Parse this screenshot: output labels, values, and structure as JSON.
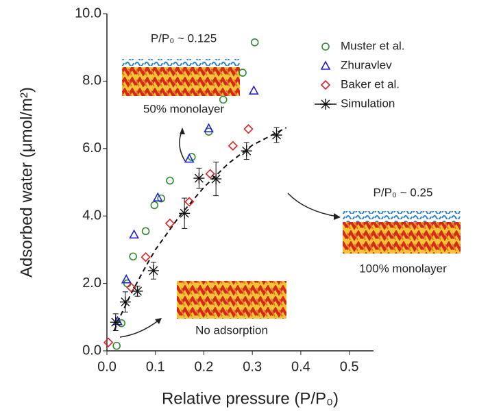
{
  "chart_data": {
    "type": "scatter",
    "xlabel": "Relative pressure (P/P₀)",
    "ylabel": "Adsorbed water (μmol/m²)",
    "xlim": [
      0,
      0.55
    ],
    "ylim": [
      0,
      10
    ],
    "xticks": [
      {
        "value": 0,
        "label": "0.0"
      },
      0.1,
      0.2,
      0.3,
      0.4,
      0.5
    ],
    "yticks": [
      {
        "value": 0,
        "label": "0.0"
      },
      {
        "value": 2,
        "label": "2.0"
      },
      {
        "value": 4,
        "label": "4.0"
      },
      {
        "value": 6,
        "label": "6.0"
      },
      {
        "value": 8,
        "label": "8.0"
      },
      {
        "value": 10,
        "label": "10.0"
      }
    ],
    "legend": "upper right",
    "series": [
      {
        "name": "Muster et al.",
        "color": "#2e8b2e",
        "marker": "circle",
        "x": [
          0.02,
          0.03,
          0.042,
          0.054,
          0.08,
          0.098,
          0.112,
          0.13,
          0.175,
          0.21,
          0.24,
          0.28,
          0.305
        ],
        "values": [
          0.15,
          0.82,
          2.0,
          2.8,
          3.55,
          4.32,
          4.52,
          5.05,
          5.75,
          6.5,
          7.45,
          8.25,
          9.15
        ]
      },
      {
        "name": "Zhuravlev",
        "color": "#1f1fd6",
        "marker": "triangle",
        "x": [
          0.022,
          0.04,
          0.056,
          0.105,
          0.17,
          0.21,
          0.303
        ],
        "values": [
          0.88,
          2.12,
          3.45,
          4.55,
          5.7,
          6.6,
          7.72
        ]
      },
      {
        "name": "Baker et al.",
        "color": "#e02020",
        "marker": "diamond",
        "x": [
          0.003,
          0.05,
          0.08,
          0.13,
          0.17,
          0.213,
          0.26,
          0.292
        ],
        "values": [
          0.25,
          1.88,
          2.78,
          3.78,
          4.42,
          5.25,
          6.08,
          6.58
        ]
      },
      {
        "name": "Simulation",
        "color": "#111111",
        "marker": "asterisk",
        "x": [
          0.018,
          0.038,
          0.063,
          0.096,
          0.16,
          0.19,
          0.225,
          0.288,
          0.35
        ],
        "values": [
          0.85,
          1.45,
          1.77,
          2.38,
          4.08,
          5.12,
          5.1,
          5.93,
          6.4
        ],
        "errors": [
          0.25,
          0.3,
          0.15,
          0.25,
          0.45,
          0.3,
          0.5,
          0.25,
          0.22
        ]
      }
    ],
    "fit": {
      "color": "#111111",
      "x": [
        0.015,
        0.03,
        0.05,
        0.08,
        0.1,
        0.15,
        0.2,
        0.25,
        0.3,
        0.37
      ],
      "values": [
        0.6,
        1.1,
        1.7,
        2.5,
        3.0,
        4.0,
        4.85,
        5.55,
        6.1,
        6.62
      ]
    },
    "annotations": [
      "P/P₀ ~ 0.125",
      "50% monolayer",
      "P/P₀ ~ 0.25",
      "100% monolayer",
      "No adsorption"
    ]
  }
}
